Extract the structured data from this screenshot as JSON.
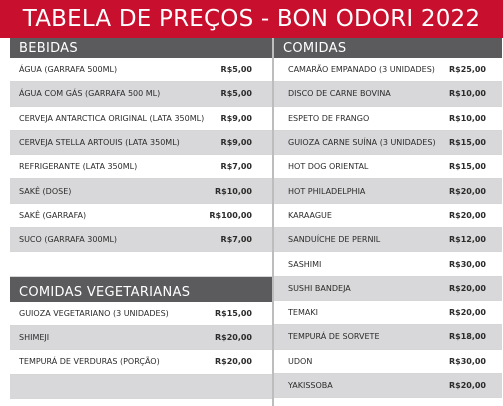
{
  "title": "TABELA DE PREÇOS - BON ODORI 2022",
  "bebidas": {
    "header": "BEBIDAS",
    "items": [
      {
        "name": "ÁGUA (GARRAFA 500ml)",
        "price": "R$5,00"
      },
      {
        "name": "ÁGUA COM GÁS (GARRAFA 500 ml)",
        "price": "R$5,00"
      },
      {
        "name": "CERVEJA ANTARCTICA ORIGINAL (LATA 350ml)",
        "price": "R$9,00"
      },
      {
        "name": "CERVEJA STELLA ARTOUIS (LATA 350ml)",
        "price": "R$9,00"
      },
      {
        "name": "REFRIGERANTE (LATA 350ml)",
        "price": "R$7,00"
      },
      {
        "name": "SAKÊ (DOSE)",
        "price": "R$10,00"
      },
      {
        "name": "SAKÊ (GARRAFA)",
        "price": "R$100,00"
      },
      {
        "name": "SUCO (GARRAFA 300ml)",
        "price": "R$7,00"
      },
      {
        "name": "",
        "price": ""
      }
    ]
  },
  "vegetarianas": {
    "header": "COMIDAS VEGETARIANAS",
    "items": [
      {
        "name": "GUIOZA VEGETARIANO (3 UNIDADES)",
        "price": "R$15,00"
      },
      {
        "name": "SHIMEJI",
        "price": "R$20,00"
      },
      {
        "name": "TEMPURÁ DE VERDURAS (PORÇÃO)",
        "price": "R$20,00"
      },
      {
        "name": "",
        "price": ""
      }
    ]
  },
  "comidas": {
    "header": "COMIDAS",
    "items": [
      {
        "name": "CAMARÃO EMPANADO (3 UNIDADES)",
        "price": "R$25,00"
      },
      {
        "name": "DISCO DE CARNE BOVINA",
        "price": "R$10,00"
      },
      {
        "name": "ESPETO DE FRANGO",
        "price": "R$10,00"
      },
      {
        "name": "GUIOZA CARNE SUÍNA (3 UNIDADES)",
        "price": "R$15,00"
      },
      {
        "name": "HOT DOG ORIENTAL",
        "price": "R$15,00"
      },
      {
        "name": "HOT PHILADELPHIA",
        "price": "R$20,00"
      },
      {
        "name": "KARAAGUE",
        "price": "R$20,00"
      },
      {
        "name": "SANDUÍCHE DE PERNIL",
        "price": "R$12,00"
      },
      {
        "name": "SASHIMI",
        "price": "R$30,00"
      },
      {
        "name": "SUSHI BANDEJA",
        "price": "R$20,00"
      },
      {
        "name": "TEMAKI",
        "price": "R$20,00"
      },
      {
        "name": "TEMPURÁ DE SORVETE",
        "price": "R$18,00"
      },
      {
        "name": "UDON",
        "price": "R$30,00"
      },
      {
        "name": "YAKISSOBA",
        "price": "R$20,00"
      }
    ]
  },
  "colors": {
    "title_bg": "#c8102e",
    "header_bg": "#5b5b5d",
    "row_alt": "#d8d8da"
  }
}
